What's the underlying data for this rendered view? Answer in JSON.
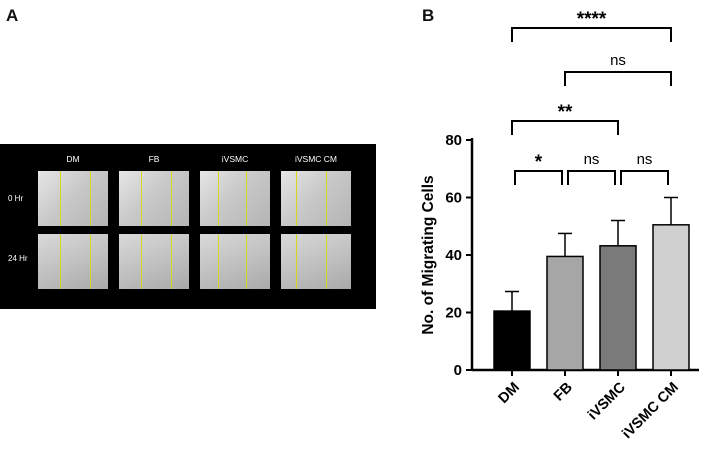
{
  "panels": {
    "a_label": "A",
    "b_label": "B"
  },
  "image_grid": {
    "columns": [
      "DM",
      "FB",
      "iVSMC",
      "iVSMC CM"
    ],
    "rows": [
      "0 Hr",
      "24 Hr"
    ]
  },
  "chart_data": {
    "type": "bar",
    "categories": [
      "DM",
      "FB",
      "iVSMC",
      "iVSMC CM"
    ],
    "values": [
      20.5,
      39.5,
      43.2,
      50.5
    ],
    "errors": [
      6.8,
      8.0,
      8.8,
      9.5
    ],
    "ylabel": "No. of Migrating Cells",
    "xlabel": "",
    "ylim": [
      0,
      80
    ],
    "yticks": [
      0,
      20,
      40,
      60,
      80
    ],
    "bar_colors": [
      "#000000",
      "#a6a6a6",
      "#7a7a7a",
      "#d0d0d0"
    ],
    "significance": [
      {
        "from": "DM",
        "to": "FB",
        "label": "*"
      },
      {
        "from": "FB",
        "to": "iVSMC",
        "label": "ns"
      },
      {
        "from": "iVSMC",
        "to": "iVSMC CM",
        "label": "ns"
      },
      {
        "from": "DM",
        "to": "iVSMC",
        "label": "**"
      },
      {
        "from": "FB",
        "to": "iVSMC CM",
        "label": "ns"
      },
      {
        "from": "DM",
        "to": "iVSMC CM",
        "label": "****"
      }
    ],
    "grid": false
  }
}
